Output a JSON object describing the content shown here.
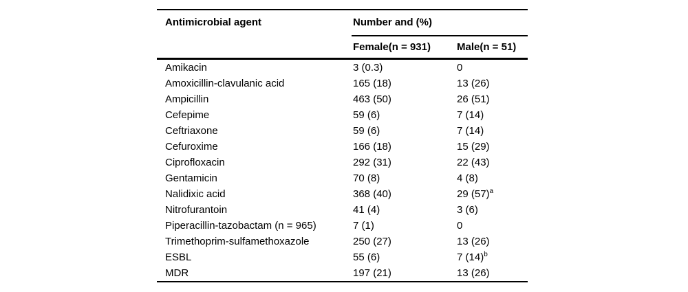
{
  "table": {
    "header": {
      "agent_label": "Antimicrobial agent",
      "group_label": "Number and (%)",
      "female_label": "Female(n = 931)",
      "male_label": "Male(n = 51)"
    },
    "rows": [
      {
        "agent": "Amikacin",
        "female": "3 (0.3)",
        "male": "0",
        "male_sup": ""
      },
      {
        "agent": "Amoxicillin-clavulanic acid",
        "female": "165 (18)",
        "male": "13 (26)",
        "male_sup": ""
      },
      {
        "agent": "Ampicillin",
        "female": "463 (50)",
        "male": "26 (51)",
        "male_sup": ""
      },
      {
        "agent": "Cefepime",
        "female": "59 (6)",
        "male": "7 (14)",
        "male_sup": ""
      },
      {
        "agent": "Ceftriaxone",
        "female": "59 (6)",
        "male": "7 (14)",
        "male_sup": ""
      },
      {
        "agent": "Cefuroxime",
        "female": "166 (18)",
        "male": "15 (29)",
        "male_sup": ""
      },
      {
        "agent": "Ciprofloxacin",
        "female": "292 (31)",
        "male": "22 (43)",
        "male_sup": ""
      },
      {
        "agent": "Gentamicin",
        "female": "70 (8)",
        "male": "4 (8)",
        "male_sup": ""
      },
      {
        "agent": "Nalidixic acid",
        "female": "368 (40)",
        "male": "29 (57)",
        "male_sup": "a"
      },
      {
        "agent": "Nitrofurantoin",
        "female": "41 (4)",
        "male": "3 (6)",
        "male_sup": ""
      },
      {
        "agent": "Piperacillin-tazobactam (n = 965)",
        "female": "7 (1)",
        "male": "0",
        "male_sup": ""
      },
      {
        "agent": "Trimethoprim-sulfamethoxazole",
        "female": "250 (27)",
        "male": "13 (26)",
        "male_sup": ""
      },
      {
        "agent": "ESBL",
        "female": "55 (6)",
        "male": "7 (14)",
        "male_sup": "b"
      },
      {
        "agent": "MDR",
        "female": "197 (21)",
        "male": "13 (26)",
        "male_sup": ""
      }
    ],
    "colors": {
      "text": "#000000",
      "rule": "#000000",
      "background": "#ffffff"
    }
  }
}
